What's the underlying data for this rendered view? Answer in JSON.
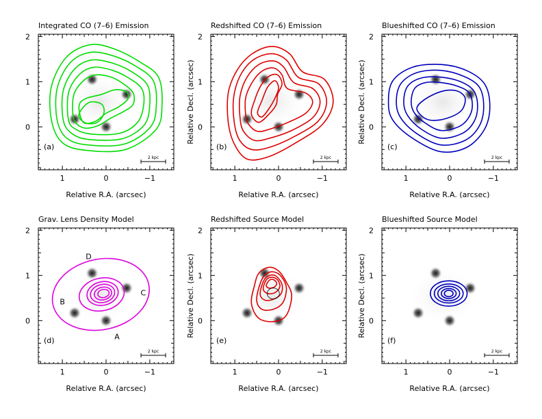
{
  "figure": {
    "panels": [
      {
        "id": "a",
        "title": "Integrated CO (7–6) Emission",
        "label": "(a)",
        "ylabel": "",
        "contour_color": "#00dd00",
        "contour_set": "integrated",
        "show_quasar_images": true
      },
      {
        "id": "b",
        "title": "Redshifted CO (7–6) Emission",
        "label": "(b)",
        "ylabel": "Relative Decl. (arcsec)",
        "contour_color": "#dd0000",
        "contour_set": "red",
        "show_quasar_images": true
      },
      {
        "id": "c",
        "title": "Blueshifted CO (7–6) Emission",
        "label": "(c)",
        "ylabel": "Relative Decl. (arcsec)",
        "contour_color": "#0000bb",
        "contour_set": "blue",
        "show_quasar_images": true
      },
      {
        "id": "d",
        "title": "Grav. Lens Density Model",
        "label": "(d)",
        "ylabel": "",
        "contour_color": "#dd00dd",
        "contour_set": "lens",
        "show_quasar_images": true
      },
      {
        "id": "e",
        "title": "Redshifted Source Model",
        "label": "(e)",
        "ylabel": "Relative Decl. (arcsec)",
        "contour_color": "#dd0000",
        "contour_set": "red_src",
        "show_quasar_images": true
      },
      {
        "id": "f",
        "title": "Blueshifted Source Model",
        "label": "(f)",
        "ylabel": "Relative Decl. (arcsec)",
        "contour_color": "#0000bb",
        "contour_set": "blue_src",
        "show_quasar_images": true
      }
    ],
    "xlabel": "Relative R.A. (arcsec)",
    "scale_bar_label": "2 kpc",
    "x_ticks": [
      {
        "v": 1,
        "t": "1"
      },
      {
        "v": 0,
        "t": "0"
      },
      {
        "v": -1,
        "t": "−1"
      }
    ],
    "y_ticks": [
      {
        "v": 0,
        "t": "0"
      },
      {
        "v": 1,
        "t": "1"
      },
      {
        "v": 2,
        "t": "2"
      }
    ],
    "axes": {
      "xlim": [
        1.55,
        -1.55
      ],
      "ylim": [
        -0.95,
        2.05
      ]
    },
    "image_labels": [
      {
        "t": "A",
        "x": -0.25,
        "y": -0.35
      },
      {
        "t": "B",
        "x": 1.0,
        "y": 0.42
      },
      {
        "t": "C",
        "x": -0.85,
        "y": 0.62
      },
      {
        "t": "D",
        "x": 0.4,
        "y": 1.42
      }
    ]
  },
  "chart_data": {
    "type": "contour",
    "units": "arcsec",
    "quasar_images": [
      {
        "name": "A",
        "x": 0.0,
        "y": 0.0
      },
      {
        "name": "B",
        "x": 0.72,
        "y": 0.17
      },
      {
        "name": "C",
        "x": -0.47,
        "y": 0.72
      },
      {
        "name": "D",
        "x": 0.32,
        "y": 1.05
      }
    ],
    "contours": {
      "integrated": [
        [
          [
            1.25,
            0.15
          ],
          [
            1.25,
            0.9
          ],
          [
            0.9,
            1.55
          ],
          [
            0.35,
            1.82
          ],
          [
            -0.2,
            1.72
          ],
          [
            -0.8,
            1.42
          ],
          [
            -1.2,
            1.1
          ],
          [
            -1.28,
            0.5
          ],
          [
            -1.15,
            -0.05
          ],
          [
            -0.45,
            -0.5
          ],
          [
            0.45,
            -0.52
          ],
          [
            1.0,
            -0.35
          ]
        ],
        [
          [
            1.12,
            0.15
          ],
          [
            1.12,
            0.85
          ],
          [
            0.82,
            1.42
          ],
          [
            0.35,
            1.65
          ],
          [
            -0.2,
            1.56
          ],
          [
            -0.72,
            1.32
          ],
          [
            -1.08,
            1.02
          ],
          [
            -1.15,
            0.5
          ],
          [
            -1.02,
            0.0
          ],
          [
            -0.42,
            -0.38
          ],
          [
            0.42,
            -0.4
          ],
          [
            0.9,
            -0.25
          ]
        ],
        [
          [
            0.98,
            0.15
          ],
          [
            0.98,
            0.8
          ],
          [
            0.72,
            1.28
          ],
          [
            0.32,
            1.48
          ],
          [
            -0.18,
            1.4
          ],
          [
            -0.62,
            1.2
          ],
          [
            -0.95,
            0.92
          ],
          [
            -1.0,
            0.5
          ],
          [
            -0.88,
            0.05
          ],
          [
            -0.38,
            -0.26
          ],
          [
            0.38,
            -0.28
          ],
          [
            0.78,
            -0.15
          ]
        ],
        [
          [
            0.86,
            0.15
          ],
          [
            0.86,
            0.75
          ],
          [
            0.62,
            1.15
          ],
          [
            0.28,
            1.32
          ],
          [
            -0.15,
            1.25
          ],
          [
            -0.52,
            1.08
          ],
          [
            -0.82,
            0.84
          ],
          [
            -0.86,
            0.48
          ],
          [
            -0.72,
            0.1
          ],
          [
            -0.32,
            -0.14
          ],
          [
            0.32,
            -0.16
          ],
          [
            0.68,
            -0.06
          ]
        ],
        [
          [
            0.74,
            0.18
          ],
          [
            0.74,
            0.7
          ],
          [
            0.52,
            1.02
          ],
          [
            0.24,
            1.15
          ],
          [
            -0.12,
            1.1
          ],
          [
            -0.4,
            0.95
          ],
          [
            -0.62,
            0.75
          ],
          [
            -0.62,
            0.5
          ],
          [
            -0.42,
            0.35
          ],
          [
            -0.12,
            0.2
          ],
          [
            0.2,
            0.02
          ],
          [
            0.52,
            -0.02
          ]
        ],
        [
          [
            0.62,
            0.45
          ],
          [
            0.48,
            0.62
          ],
          [
            0.1,
            0.72
          ],
          [
            -0.2,
            0.82
          ],
          [
            -0.46,
            0.78
          ],
          [
            -0.5,
            0.62
          ],
          [
            -0.3,
            0.45
          ],
          [
            0.0,
            0.3
          ],
          [
            0.25,
            0.12
          ],
          [
            0.52,
            0.1
          ]
        ],
        [
          [
            0.55,
            0.4
          ],
          [
            0.36,
            0.55
          ],
          [
            0.1,
            0.5
          ],
          [
            0.05,
            0.3
          ],
          [
            0.2,
            0.1
          ],
          [
            0.45,
            0.08
          ],
          [
            0.62,
            0.22
          ]
        ]
      ],
      "red": [
        [
          [
            1.15,
            0.1
          ],
          [
            1.15,
            0.75
          ],
          [
            0.95,
            1.25
          ],
          [
            0.6,
            1.62
          ],
          [
            0.15,
            1.78
          ],
          [
            -0.25,
            1.62
          ],
          [
            -0.55,
            1.22
          ],
          [
            -1.05,
            1.05
          ],
          [
            -1.25,
            0.55
          ],
          [
            -1.0,
            0.05
          ],
          [
            -0.4,
            -0.35
          ],
          [
            0.2,
            -0.65
          ],
          [
            0.7,
            -0.72
          ],
          [
            1.0,
            -0.4
          ]
        ],
        [
          [
            1.02,
            0.15
          ],
          [
            1.02,
            0.7
          ],
          [
            0.85,
            1.18
          ],
          [
            0.55,
            1.5
          ],
          [
            0.15,
            1.62
          ],
          [
            -0.18,
            1.48
          ],
          [
            -0.45,
            1.1
          ],
          [
            -0.92,
            0.95
          ],
          [
            -1.1,
            0.55
          ],
          [
            -0.9,
            0.12
          ],
          [
            -0.35,
            -0.22
          ],
          [
            0.2,
            -0.45
          ],
          [
            0.62,
            -0.5
          ],
          [
            0.9,
            -0.28
          ]
        ],
        [
          [
            0.88,
            0.2
          ],
          [
            0.88,
            0.68
          ],
          [
            0.72,
            1.1
          ],
          [
            0.45,
            1.38
          ],
          [
            0.12,
            1.46
          ],
          [
            -0.12,
            1.32
          ],
          [
            -0.35,
            0.98
          ],
          [
            -0.78,
            0.85
          ],
          [
            -0.95,
            0.55
          ],
          [
            -0.78,
            0.2
          ],
          [
            -0.3,
            -0.08
          ],
          [
            0.2,
            -0.25
          ],
          [
            0.55,
            -0.3
          ],
          [
            0.8,
            -0.1
          ]
        ],
        [
          [
            0.75,
            0.25
          ],
          [
            0.75,
            0.65
          ],
          [
            0.58,
            1.02
          ],
          [
            0.35,
            1.25
          ],
          [
            0.1,
            1.3
          ],
          [
            -0.08,
            1.15
          ],
          [
            -0.2,
            0.85
          ],
          [
            -0.62,
            0.75
          ],
          [
            -0.78,
            0.55
          ],
          [
            -0.62,
            0.3
          ],
          [
            -0.22,
            0.1
          ],
          [
            0.2,
            -0.05
          ],
          [
            0.48,
            -0.1
          ],
          [
            0.68,
            0.05
          ]
        ],
        [
          [
            0.62,
            0.28
          ],
          [
            0.55,
            0.58
          ],
          [
            0.4,
            0.92
          ],
          [
            0.22,
            1.12
          ],
          [
            0.02,
            1.15
          ],
          [
            -0.08,
            0.95
          ],
          [
            0.02,
            0.72
          ],
          [
            0.05,
            0.5
          ],
          [
            0.2,
            0.3
          ],
          [
            0.45,
            0.1
          ]
        ],
        [
          [
            0.48,
            0.32
          ],
          [
            0.38,
            0.58
          ],
          [
            0.25,
            0.88
          ],
          [
            0.08,
            1.02
          ],
          [
            0.0,
            0.85
          ],
          [
            0.1,
            0.6
          ],
          [
            0.22,
            0.4
          ],
          [
            0.38,
            0.22
          ]
        ]
      ],
      "blue": [
        [
          [
            1.4,
            0.55
          ],
          [
            1.3,
            1.02
          ],
          [
            0.85,
            1.32
          ],
          [
            0.2,
            1.38
          ],
          [
            -0.38,
            1.25
          ],
          [
            -0.8,
            0.95
          ],
          [
            -0.92,
            0.45
          ],
          [
            -0.8,
            -0.05
          ],
          [
            -0.4,
            -0.45
          ],
          [
            0.2,
            -0.55
          ],
          [
            0.85,
            -0.25
          ],
          [
            1.3,
            0.15
          ]
        ],
        [
          [
            1.22,
            0.55
          ],
          [
            1.12,
            0.95
          ],
          [
            0.75,
            1.2
          ],
          [
            0.2,
            1.25
          ],
          [
            -0.32,
            1.12
          ],
          [
            -0.68,
            0.88
          ],
          [
            -0.78,
            0.45
          ],
          [
            -0.68,
            0.02
          ],
          [
            -0.35,
            -0.3
          ],
          [
            0.2,
            -0.4
          ],
          [
            0.75,
            -0.15
          ],
          [
            1.12,
            0.2
          ]
        ],
        [
          [
            1.05,
            0.55
          ],
          [
            0.96,
            0.9
          ],
          [
            0.65,
            1.08
          ],
          [
            0.2,
            1.1
          ],
          [
            -0.25,
            1.0
          ],
          [
            -0.55,
            0.8
          ],
          [
            -0.64,
            0.45
          ],
          [
            -0.55,
            0.1
          ],
          [
            -0.28,
            -0.15
          ],
          [
            0.2,
            -0.25
          ],
          [
            0.65,
            -0.05
          ],
          [
            0.96,
            0.25
          ]
        ],
        [
          [
            0.88,
            0.55
          ],
          [
            0.8,
            0.85
          ],
          [
            0.55,
            0.98
          ],
          [
            0.2,
            0.98
          ],
          [
            -0.18,
            0.9
          ],
          [
            -0.45,
            0.75
          ],
          [
            -0.52,
            0.45
          ],
          [
            -0.42,
            0.18
          ],
          [
            -0.2,
            0.0
          ],
          [
            0.2,
            -0.08
          ],
          [
            0.55,
            0.08
          ],
          [
            0.8,
            0.3
          ]
        ],
        [
          [
            0.75,
            0.4
          ],
          [
            0.58,
            0.6
          ],
          [
            0.2,
            0.78
          ],
          [
            -0.15,
            0.8
          ],
          [
            -0.35,
            0.65
          ],
          [
            -0.3,
            0.4
          ],
          [
            -0.1,
            0.25
          ],
          [
            0.25,
            0.15
          ],
          [
            0.55,
            0.18
          ]
        ]
      ],
      "lens": [
        {
          "cx": 0.12,
          "cy": 0.58,
          "rx": 1.12,
          "ry": 0.78,
          "rot": 12
        },
        {
          "cx": 0.1,
          "cy": 0.58,
          "rx": 0.52,
          "ry": 0.36,
          "rot": 12
        },
        {
          "cx": 0.08,
          "cy": 0.6,
          "rx": 0.36,
          "ry": 0.26,
          "rot": 12
        },
        {
          "cx": 0.08,
          "cy": 0.6,
          "rx": 0.28,
          "ry": 0.2,
          "rot": 12
        },
        {
          "cx": 0.07,
          "cy": 0.6,
          "rx": 0.2,
          "ry": 0.14,
          "rot": 12
        },
        {
          "cx": 0.06,
          "cy": 0.6,
          "rx": 0.13,
          "ry": 0.09,
          "rot": 12
        }
      ],
      "red_src": [
        [
          [
            0.62,
            0.38
          ],
          [
            0.55,
            0.78
          ],
          [
            0.45,
            1.05
          ],
          [
            0.22,
            1.18
          ],
          [
            0.0,
            1.1
          ],
          [
            -0.18,
            0.85
          ],
          [
            -0.3,
            0.55
          ],
          [
            -0.18,
            0.12
          ],
          [
            0.1,
            -0.02
          ],
          [
            0.45,
            0.05
          ]
        ],
        [
          [
            0.5,
            0.45
          ],
          [
            0.42,
            0.82
          ],
          [
            0.3,
            1.02
          ],
          [
            0.12,
            1.08
          ],
          [
            -0.06,
            0.98
          ],
          [
            -0.18,
            0.72
          ],
          [
            -0.1,
            0.4
          ],
          [
            0.12,
            0.25
          ],
          [
            0.38,
            0.25
          ]
        ],
        [
          [
            0.42,
            0.58
          ],
          [
            0.34,
            0.88
          ],
          [
            0.2,
            1.0
          ],
          [
            0.05,
            0.98
          ],
          [
            -0.08,
            0.8
          ],
          [
            -0.06,
            0.6
          ],
          [
            0.1,
            0.48
          ],
          [
            0.3,
            0.45
          ]
        ],
        [
          [
            0.35,
            0.7
          ],
          [
            0.28,
            0.9
          ],
          [
            0.15,
            0.96
          ],
          [
            0.02,
            0.9
          ],
          [
            -0.03,
            0.75
          ],
          [
            0.08,
            0.62
          ],
          [
            0.25,
            0.6
          ]
        ],
        [
          [
            0.28,
            0.78
          ],
          [
            0.2,
            0.9
          ],
          [
            0.1,
            0.9
          ],
          [
            0.04,
            0.82
          ],
          [
            0.1,
            0.74
          ],
          [
            0.22,
            0.72
          ]
        ]
      ],
      "red_src_caustic": {
        "cx": 0.12,
        "cy": 0.6,
        "rx": 0.14,
        "ry": 0.12
      },
      "blue_src": [
        {
          "cx": 0.02,
          "cy": 0.6,
          "rx": 0.42,
          "ry": 0.28,
          "rot": 0
        },
        {
          "cx": 0.02,
          "cy": 0.6,
          "rx": 0.33,
          "ry": 0.21,
          "rot": 0
        },
        {
          "cx": 0.02,
          "cy": 0.6,
          "rx": 0.25,
          "ry": 0.16,
          "rot": 0
        },
        {
          "cx": 0.02,
          "cy": 0.6,
          "rx": 0.17,
          "ry": 0.11,
          "rot": 0
        },
        {
          "cx": 0.02,
          "cy": 0.6,
          "rx": 0.1,
          "ry": 0.07,
          "rot": 0
        }
      ]
    }
  }
}
